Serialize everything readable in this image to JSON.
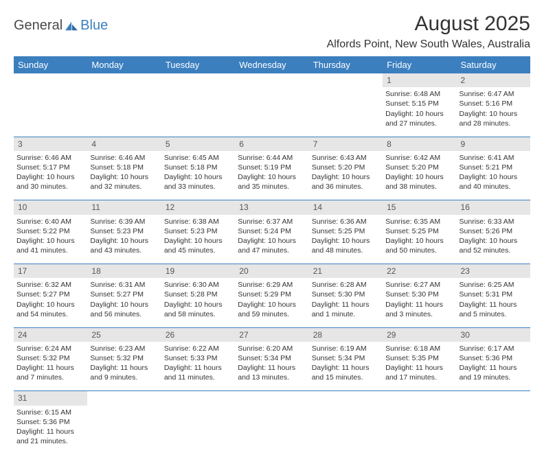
{
  "logo": {
    "text1": "General",
    "text2": "Blue"
  },
  "title": "August 2025",
  "location": "Alfords Point, New South Wales, Australia",
  "colors": {
    "header_bg": "#3b7fbf",
    "header_text": "#ffffff",
    "daynum_bg": "#e6e6e6",
    "border": "#3b7fbf",
    "body_text": "#333333",
    "logo_gray": "#4a4a4a",
    "logo_blue": "#3b7fbf"
  },
  "weekdays": [
    "Sunday",
    "Monday",
    "Tuesday",
    "Wednesday",
    "Thursday",
    "Friday",
    "Saturday"
  ],
  "weeks": [
    {
      "nums": [
        "",
        "",
        "",
        "",
        "",
        "1",
        "2"
      ],
      "cells": [
        null,
        null,
        null,
        null,
        null,
        {
          "sunrise": "6:48 AM",
          "sunset": "5:15 PM",
          "daylight": "10 hours and 27 minutes."
        },
        {
          "sunrise": "6:47 AM",
          "sunset": "5:16 PM",
          "daylight": "10 hours and 28 minutes."
        }
      ]
    },
    {
      "nums": [
        "3",
        "4",
        "5",
        "6",
        "7",
        "8",
        "9"
      ],
      "cells": [
        {
          "sunrise": "6:46 AM",
          "sunset": "5:17 PM",
          "daylight": "10 hours and 30 minutes."
        },
        {
          "sunrise": "6:46 AM",
          "sunset": "5:18 PM",
          "daylight": "10 hours and 32 minutes."
        },
        {
          "sunrise": "6:45 AM",
          "sunset": "5:18 PM",
          "daylight": "10 hours and 33 minutes."
        },
        {
          "sunrise": "6:44 AM",
          "sunset": "5:19 PM",
          "daylight": "10 hours and 35 minutes."
        },
        {
          "sunrise": "6:43 AM",
          "sunset": "5:20 PM",
          "daylight": "10 hours and 36 minutes."
        },
        {
          "sunrise": "6:42 AM",
          "sunset": "5:20 PM",
          "daylight": "10 hours and 38 minutes."
        },
        {
          "sunrise": "6:41 AM",
          "sunset": "5:21 PM",
          "daylight": "10 hours and 40 minutes."
        }
      ]
    },
    {
      "nums": [
        "10",
        "11",
        "12",
        "13",
        "14",
        "15",
        "16"
      ],
      "cells": [
        {
          "sunrise": "6:40 AM",
          "sunset": "5:22 PM",
          "daylight": "10 hours and 41 minutes."
        },
        {
          "sunrise": "6:39 AM",
          "sunset": "5:23 PM",
          "daylight": "10 hours and 43 minutes."
        },
        {
          "sunrise": "6:38 AM",
          "sunset": "5:23 PM",
          "daylight": "10 hours and 45 minutes."
        },
        {
          "sunrise": "6:37 AM",
          "sunset": "5:24 PM",
          "daylight": "10 hours and 47 minutes."
        },
        {
          "sunrise": "6:36 AM",
          "sunset": "5:25 PM",
          "daylight": "10 hours and 48 minutes."
        },
        {
          "sunrise": "6:35 AM",
          "sunset": "5:25 PM",
          "daylight": "10 hours and 50 minutes."
        },
        {
          "sunrise": "6:33 AM",
          "sunset": "5:26 PM",
          "daylight": "10 hours and 52 minutes."
        }
      ]
    },
    {
      "nums": [
        "17",
        "18",
        "19",
        "20",
        "21",
        "22",
        "23"
      ],
      "cells": [
        {
          "sunrise": "6:32 AM",
          "sunset": "5:27 PM",
          "daylight": "10 hours and 54 minutes."
        },
        {
          "sunrise": "6:31 AM",
          "sunset": "5:27 PM",
          "daylight": "10 hours and 56 minutes."
        },
        {
          "sunrise": "6:30 AM",
          "sunset": "5:28 PM",
          "daylight": "10 hours and 58 minutes."
        },
        {
          "sunrise": "6:29 AM",
          "sunset": "5:29 PM",
          "daylight": "10 hours and 59 minutes."
        },
        {
          "sunrise": "6:28 AM",
          "sunset": "5:30 PM",
          "daylight": "11 hours and 1 minute."
        },
        {
          "sunrise": "6:27 AM",
          "sunset": "5:30 PM",
          "daylight": "11 hours and 3 minutes."
        },
        {
          "sunrise": "6:25 AM",
          "sunset": "5:31 PM",
          "daylight": "11 hours and 5 minutes."
        }
      ]
    },
    {
      "nums": [
        "24",
        "25",
        "26",
        "27",
        "28",
        "29",
        "30"
      ],
      "cells": [
        {
          "sunrise": "6:24 AM",
          "sunset": "5:32 PM",
          "daylight": "11 hours and 7 minutes."
        },
        {
          "sunrise": "6:23 AM",
          "sunset": "5:32 PM",
          "daylight": "11 hours and 9 minutes."
        },
        {
          "sunrise": "6:22 AM",
          "sunset": "5:33 PM",
          "daylight": "11 hours and 11 minutes."
        },
        {
          "sunrise": "6:20 AM",
          "sunset": "5:34 PM",
          "daylight": "11 hours and 13 minutes."
        },
        {
          "sunrise": "6:19 AM",
          "sunset": "5:34 PM",
          "daylight": "11 hours and 15 minutes."
        },
        {
          "sunrise": "6:18 AM",
          "sunset": "5:35 PM",
          "daylight": "11 hours and 17 minutes."
        },
        {
          "sunrise": "6:17 AM",
          "sunset": "5:36 PM",
          "daylight": "11 hours and 19 minutes."
        }
      ]
    },
    {
      "nums": [
        "31",
        "",
        "",
        "",
        "",
        "",
        ""
      ],
      "cells": [
        {
          "sunrise": "6:15 AM",
          "sunset": "5:36 PM",
          "daylight": "11 hours and 21 minutes."
        },
        null,
        null,
        null,
        null,
        null,
        null
      ]
    }
  ],
  "labels": {
    "sunrise": "Sunrise: ",
    "sunset": "Sunset: ",
    "daylight": "Daylight: "
  }
}
